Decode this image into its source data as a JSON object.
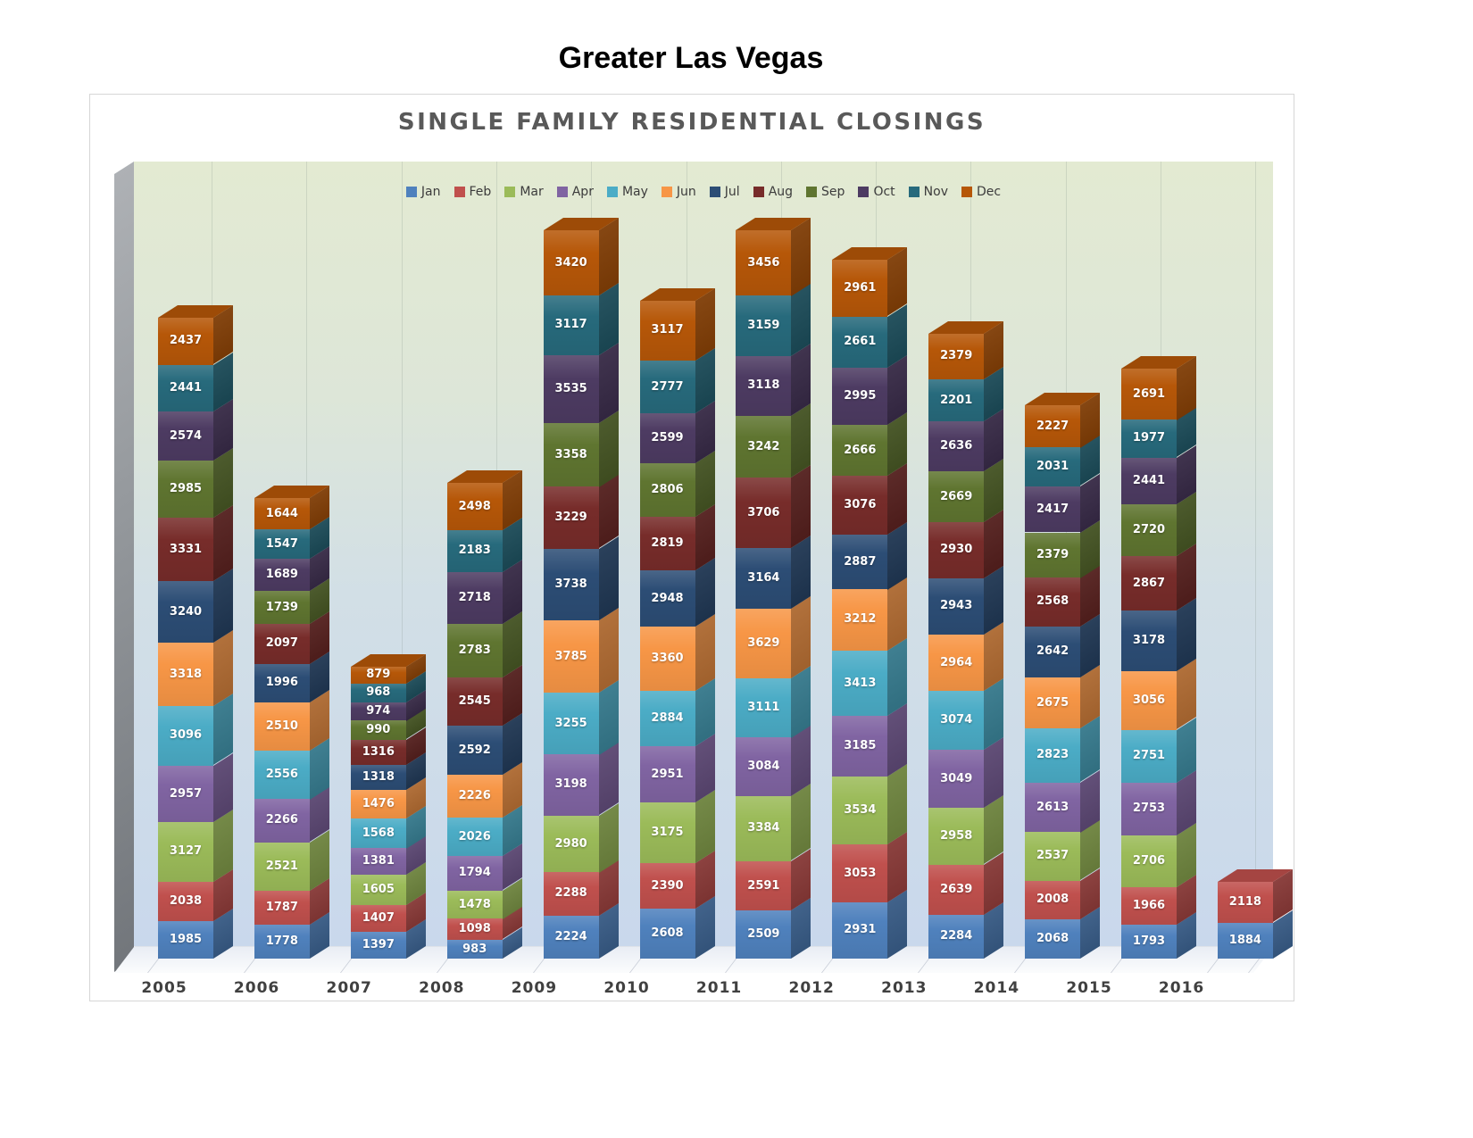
{
  "page_title": "Greater Las Vegas",
  "chart_data": {
    "type": "bar",
    "stacked": true,
    "title": "SINGLE FAMILY RESIDENTIAL CLOSINGS",
    "legend_position": "top-inside",
    "value_labels": true,
    "grid": "faint-vertical",
    "ylim": [
      0,
      40000
    ],
    "categories": [
      "2005",
      "2006",
      "2007",
      "2008",
      "2009",
      "2010",
      "2011",
      "2012",
      "2013",
      "2014",
      "2015",
      "2016"
    ],
    "series": [
      {
        "name": "Jan",
        "color": "#4F81BD",
        "values": [
          1985,
          1778,
          1397,
          983,
          2224,
          2608,
          2509,
          2931,
          2284,
          2068,
          1793,
          1884
        ]
      },
      {
        "name": "Feb",
        "color": "#C0504D",
        "values": [
          2038,
          1787,
          1407,
          1098,
          2288,
          2390,
          2591,
          3053,
          2639,
          2008,
          1966,
          2118
        ]
      },
      {
        "name": "Mar",
        "color": "#9BBB59",
        "values": [
          3127,
          2521,
          1605,
          1478,
          2980,
          3175,
          3384,
          3534,
          2958,
          2537,
          2706,
          null
        ]
      },
      {
        "name": "Apr",
        "color": "#8064A2",
        "values": [
          2957,
          2266,
          1381,
          1794,
          3198,
          2951,
          3084,
          3185,
          3049,
          2613,
          2753,
          null
        ]
      },
      {
        "name": "May",
        "color": "#4BACC6",
        "values": [
          3096,
          2556,
          1568,
          2026,
          3255,
          2884,
          3111,
          3413,
          3074,
          2823,
          2751,
          null
        ]
      },
      {
        "name": "Jun",
        "color": "#F79646",
        "values": [
          3318,
          2510,
          1476,
          2226,
          3785,
          3360,
          3629,
          3212,
          2964,
          2675,
          3056,
          null
        ]
      },
      {
        "name": "Jul",
        "color": "#2C4D75",
        "values": [
          3240,
          1996,
          1318,
          2592,
          3738,
          2948,
          3164,
          2887,
          2943,
          2642,
          3178,
          null
        ]
      },
      {
        "name": "Aug",
        "color": "#772C2A",
        "values": [
          3331,
          2097,
          1316,
          2545,
          3229,
          2819,
          3706,
          3076,
          2930,
          2568,
          2867,
          null
        ]
      },
      {
        "name": "Sep",
        "color": "#5F7530",
        "values": [
          2985,
          1739,
          990,
          2783,
          3358,
          2806,
          3242,
          2666,
          2669,
          2379,
          2720,
          null
        ]
      },
      {
        "name": "Oct",
        "color": "#4D3B62",
        "values": [
          2574,
          1689,
          974,
          2718,
          3535,
          2599,
          3118,
          2995,
          2636,
          2417,
          2441,
          null
        ]
      },
      {
        "name": "Nov",
        "color": "#276A7C",
        "values": [
          2441,
          1547,
          968,
          2183,
          3117,
          2777,
          3159,
          2661,
          2201,
          2031,
          1977,
          null
        ]
      },
      {
        "name": "Dec",
        "color": "#B65708",
        "values": [
          2437,
          1644,
          879,
          2498,
          3420,
          3117,
          3456,
          2961,
          2379,
          2227,
          2691,
          null
        ]
      }
    ]
  }
}
